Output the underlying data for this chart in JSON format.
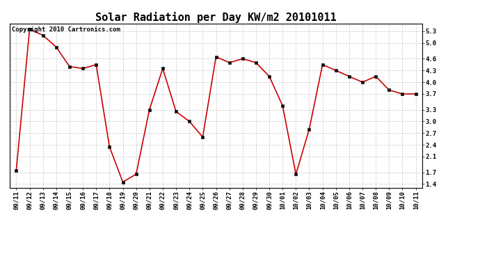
{
  "title": "Solar Radiation per Day KW/m2 20101011",
  "copyright": "Copyright 2010 Cartronics.com",
  "labels": [
    "09/11",
    "09/12",
    "09/13",
    "09/14",
    "09/15",
    "09/16",
    "09/17",
    "09/18",
    "09/19",
    "09/20",
    "09/21",
    "09/22",
    "09/23",
    "09/24",
    "09/25",
    "09/26",
    "09/27",
    "09/28",
    "09/29",
    "09/30",
    "10/01",
    "10/02",
    "10/03",
    "10/04",
    "10/05",
    "10/06",
    "10/07",
    "10/08",
    "10/09",
    "10/10",
    "10/11"
  ],
  "values": [
    1.75,
    5.35,
    5.2,
    4.9,
    4.4,
    4.35,
    4.45,
    2.35,
    1.45,
    1.65,
    3.3,
    4.35,
    3.25,
    3.0,
    2.6,
    4.65,
    4.5,
    4.6,
    4.5,
    4.15,
    3.4,
    1.65,
    2.8,
    4.45,
    4.3,
    4.15,
    4.0,
    4.15,
    3.8,
    3.7,
    3.7
  ],
  "ylim": [
    1.3,
    5.5
  ],
  "yticks": [
    1.4,
    1.7,
    2.1,
    2.4,
    2.7,
    3.0,
    3.3,
    3.7,
    4.0,
    4.3,
    4.6,
    5.0,
    5.3
  ],
  "ytick_labels": [
    "1.4",
    "1.7",
    "2.1",
    "2.4",
    "2.7",
    "3.0",
    "3.3",
    "3.7",
    "4.0",
    "4.3",
    "4.6",
    "5.0",
    "5.3"
  ],
  "line_color": "#cc0000",
  "marker_color": "#111111",
  "bg_color": "#ffffff",
  "grid_color": "#c8c8c8",
  "title_fontsize": 11,
  "copyright_fontsize": 6.5,
  "tick_fontsize": 6.5,
  "axis_bg": "#ffffff"
}
